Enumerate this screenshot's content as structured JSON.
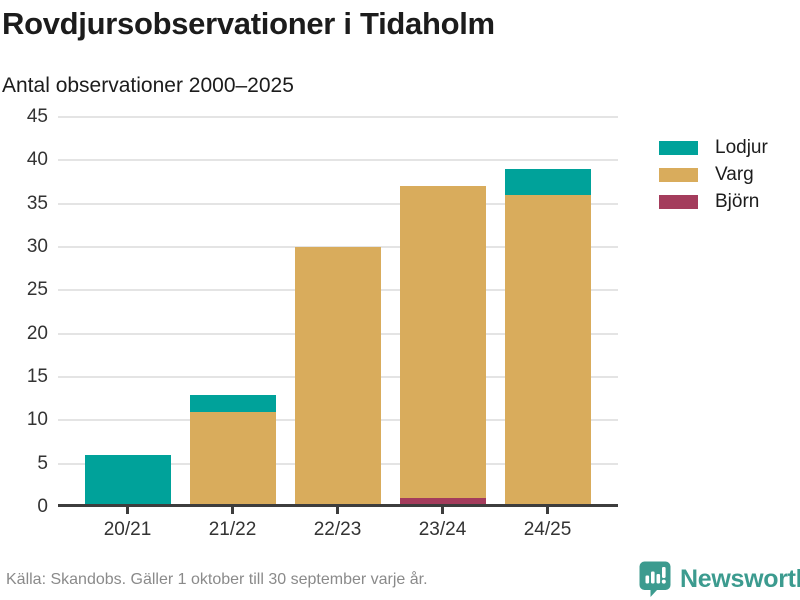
{
  "header": {
    "title": "Rovdjursobservationer i Tidaholm",
    "subtitle": "Antal observationer 2000–2025"
  },
  "chart_data": {
    "type": "bar",
    "stacked": true,
    "title": "Rovdjursobservationer i Tidaholm",
    "subtitle": "Antal observationer 2000–2025",
    "categories": [
      "20/21",
      "21/22",
      "22/23",
      "23/24",
      "24/25"
    ],
    "series": [
      {
        "name": "Lodjur",
        "color": "#00a29a",
        "values": [
          6,
          2,
          0,
          0,
          3
        ]
      },
      {
        "name": "Varg",
        "color": "#d9ac5c",
        "values": [
          0,
          11,
          30,
          36,
          36
        ]
      },
      {
        "name": "Björn",
        "color": "#a43c5c",
        "values": [
          0,
          0,
          0,
          1,
          0
        ]
      }
    ],
    "stack_order_bottom_to_top": [
      "Björn",
      "Varg",
      "Lodjur"
    ],
    "xlabel": "",
    "ylabel": "",
    "ylim": [
      0,
      45
    ],
    "yticks": [
      0,
      5,
      10,
      15,
      20,
      25,
      30,
      35,
      40,
      45
    ],
    "grid": true,
    "legend_position": "right"
  },
  "footer": {
    "source": "Källa: Skandobs. Gäller 1 oktober till 30 september varje år.",
    "brand": "Newsworthy"
  },
  "colors": {
    "lodjur": "#00a29a",
    "varg": "#d9ac5c",
    "bjorn": "#a43c5c",
    "brand_teal": "#3c9b8f",
    "grid": "#e4e4e4",
    "axis": "#3d3d3d",
    "text": "#1c1c1c",
    "muted": "#8a8a8a"
  }
}
